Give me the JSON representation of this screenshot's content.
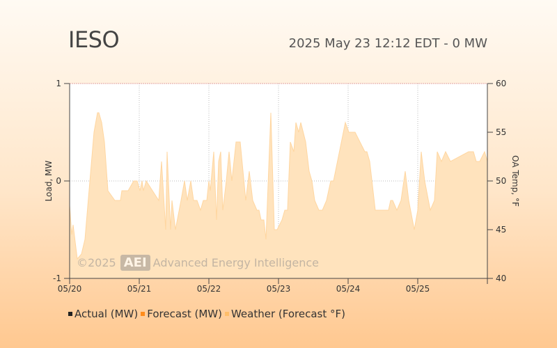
{
  "header": {
    "title": "IESO",
    "subtitle": "2025 May 23 12:12 EDT - 0 MW"
  },
  "watermark": {
    "copyright": "©2025",
    "logo": "AEI",
    "company": "Advanced Energy Intelligence"
  },
  "legend": [
    {
      "label": "Actual (MW)",
      "color": "#222222"
    },
    {
      "label": "Forecast (MW)",
      "color": "#ff8c1a"
    },
    {
      "label": "Weather (Forecast °F)",
      "color": "#ffbe6a"
    }
  ],
  "chart_data": {
    "type": "area",
    "x_tick_labels": [
      "05/20",
      "05/21",
      "05/22",
      "05/23",
      "05/24",
      "05/25"
    ],
    "xlim_days": [
      0,
      6
    ],
    "ylabel": "Load, MW",
    "y2label": "OA Temp, °F",
    "ylim": [
      -1,
      1
    ],
    "y_ticks": [
      1,
      0,
      -1
    ],
    "y2lim": [
      40,
      60
    ],
    "y2_ticks": [
      60,
      55,
      50,
      45,
      40
    ],
    "grid": true,
    "legend_position": "bottom",
    "colors": {
      "weather_fill": "#ffe3bd",
      "weather_line": "#ffd6a0",
      "grid": "#bbbbbb",
      "top_line": "#e0a0a0"
    },
    "series": [
      {
        "name": "Weather (Forecast °F)",
        "axis": "right",
        "x": [
          0.0,
          0.03,
          0.05,
          0.11,
          0.17,
          0.22,
          0.35,
          0.4,
          0.42,
          0.46,
          0.5,
          0.55,
          0.65,
          0.67,
          0.73,
          0.75,
          0.84,
          0.92,
          0.97,
          1.01,
          1.04,
          1.06,
          1.1,
          1.28,
          1.32,
          1.38,
          1.4,
          1.45,
          1.47,
          1.52,
          1.6,
          1.65,
          1.69,
          1.74,
          1.78,
          1.83,
          1.88,
          1.92,
          1.97,
          2.0,
          2.02,
          2.07,
          2.11,
          2.14,
          2.17,
          2.2,
          2.25,
          2.29,
          2.33,
          2.39,
          2.45,
          2.53,
          2.58,
          2.63,
          2.69,
          2.72,
          2.75,
          2.79,
          2.82,
          2.89,
          2.94,
          2.98,
          3.05,
          3.09,
          3.13,
          3.17,
          3.22,
          3.25,
          3.29,
          3.32,
          3.39,
          3.44,
          3.48,
          3.52,
          3.58,
          3.63,
          3.69,
          3.72,
          3.75,
          3.79,
          3.96,
          4.01,
          4.03,
          4.06,
          4.07,
          4.1,
          4.24,
          4.27,
          4.31,
          4.39,
          4.48,
          4.51,
          4.58,
          4.61,
          4.64,
          4.7,
          4.76,
          4.82,
          4.87,
          4.95,
          5.0,
          5.05,
          5.1,
          5.18,
          5.24,
          5.28,
          5.34,
          5.4,
          5.47,
          5.73,
          5.8,
          5.84,
          5.89,
          5.96,
          6.0
        ],
        "values": [
          47.5,
          44.5,
          45.5,
          42.0,
          42.5,
          44.0,
          55.0,
          57.0,
          57.0,
          56.0,
          54.0,
          49.0,
          48.0,
          48.0,
          48.0,
          49.0,
          49.0,
          50.0,
          50.0,
          49.0,
          50.0,
          49.0,
          50.0,
          48.0,
          52.0,
          45.0,
          53.0,
          45.0,
          48.0,
          45.0,
          48.0,
          50.0,
          48.0,
          50.0,
          48.0,
          48.0,
          47.0,
          48.0,
          48.0,
          50.0,
          49.0,
          53.0,
          46.0,
          52.0,
          53.0,
          47.0,
          50.0,
          53.0,
          50.0,
          54.0,
          54.0,
          48.0,
          51.0,
          48.0,
          47.0,
          47.0,
          46.0,
          46.0,
          44.0,
          57.0,
          45.0,
          45.0,
          46.0,
          47.0,
          47.0,
          54.0,
          53.0,
          56.0,
          55.0,
          56.0,
          54.0,
          51.0,
          50.0,
          48.0,
          47.0,
          47.0,
          48.0,
          49.0,
          50.0,
          50.0,
          56.0,
          55.0,
          55.0,
          55.0,
          55.0,
          55.0,
          53.0,
          53.0,
          52.0,
          47.0,
          47.0,
          47.0,
          47.0,
          48.0,
          48.0,
          47.0,
          48.0,
          51.0,
          48.0,
          45.0,
          47.0,
          53.0,
          50.0,
          47.0,
          48.0,
          53.0,
          52.0,
          53.0,
          52.0,
          53.0,
          53.0,
          52.0,
          52.0,
          53.0,
          52.0
        ],
        "note_days_from": "05/20"
      }
    ]
  }
}
